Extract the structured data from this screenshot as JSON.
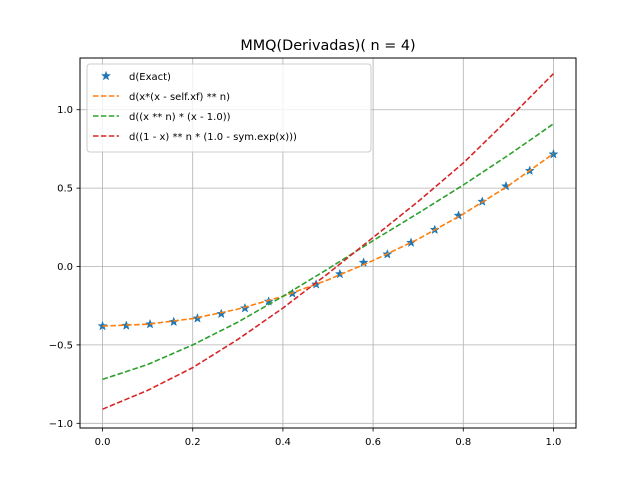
{
  "chart_data": {
    "type": "line",
    "title": "MMQ(Derivadas)( n = 4)",
    "xlabel": "",
    "ylabel": "",
    "xlim": [
      -0.05,
      1.05
    ],
    "ylim": [
      -1.03,
      1.33
    ],
    "grid": true,
    "legend_position": "upper-left",
    "x_ticks": [
      0.0,
      0.2,
      0.4,
      0.6,
      0.8,
      1.0
    ],
    "x_tick_labels": [
      "0.0",
      "0.2",
      "0.4",
      "0.6",
      "0.8",
      "1.0"
    ],
    "y_ticks": [
      -1.0,
      -0.5,
      0.0,
      0.5,
      1.0
    ],
    "y_tick_labels": [
      "−1.0",
      "−0.5",
      "0.0",
      "0.5",
      "1.0"
    ],
    "series": [
      {
        "name": "d(Exact)",
        "style": "markers",
        "marker": "star",
        "color": "#1f77b4",
        "x": [
          0.0,
          0.0526,
          0.1053,
          0.1579,
          0.2105,
          0.2632,
          0.3158,
          0.3684,
          0.4211,
          0.4737,
          0.5263,
          0.5789,
          0.6316,
          0.6842,
          0.7368,
          0.7895,
          0.8421,
          0.8947,
          0.9474,
          1.0
        ],
        "y": [
          -0.38,
          -0.377,
          -0.368,
          -0.353,
          -0.331,
          -0.302,
          -0.266,
          -0.223,
          -0.172,
          -0.114,
          -0.048,
          0.025,
          0.078,
          0.152,
          0.234,
          0.325,
          0.414,
          0.512,
          0.611,
          0.716
        ]
      },
      {
        "name": "d(x*(x - self.xf) ** n)",
        "style": "dashed",
        "color": "#ff7f0e",
        "x": [
          0.0,
          0.1,
          0.2,
          0.3,
          0.4,
          0.5,
          0.6,
          0.7,
          0.8,
          0.9,
          1.0
        ],
        "y": [
          -0.38,
          -0.368,
          -0.332,
          -0.272,
          -0.19,
          -0.085,
          0.038,
          0.175,
          0.335,
          0.515,
          0.72
        ]
      },
      {
        "name": "d((x ** n) * (x - 1.0))",
        "style": "dashed",
        "color": "#2ca02c",
        "x": [
          0.0,
          0.1,
          0.2,
          0.3,
          0.4,
          0.5,
          0.6,
          0.7,
          0.8,
          0.9,
          1.0
        ],
        "y": [
          -0.72,
          -0.625,
          -0.5,
          -0.355,
          -0.19,
          -0.015,
          0.165,
          0.34,
          0.52,
          0.71,
          0.91
        ]
      },
      {
        "name": "d((1 - x) ** n * (1.0 - sym.exp(x)))",
        "style": "dashed",
        "color": "#d62728",
        "x": [
          0.0,
          0.1,
          0.2,
          0.3,
          0.4,
          0.5,
          0.6,
          0.7,
          0.8,
          0.9,
          1.0
        ],
        "y": [
          -0.91,
          -0.79,
          -0.645,
          -0.465,
          -0.265,
          -0.045,
          0.185,
          0.415,
          0.66,
          0.94,
          1.23
        ]
      }
    ]
  }
}
